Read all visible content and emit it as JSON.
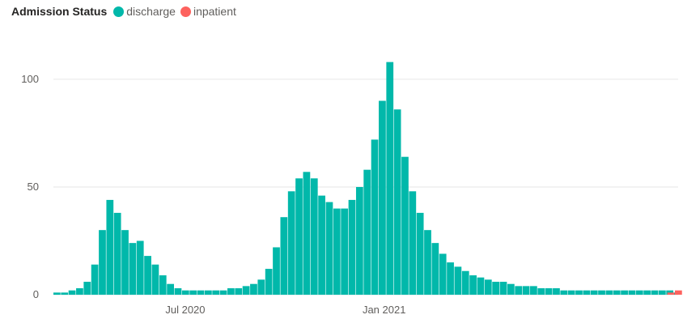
{
  "legend": {
    "title": "Admission Status",
    "items": [
      {
        "label": "discharge",
        "color": "#01b8aa"
      },
      {
        "label": "inpatient",
        "color": "#fd625e"
      }
    ]
  },
  "chart_data": {
    "type": "bar",
    "title": "",
    "xlabel": "",
    "ylabel": "",
    "x_range": [
      "2020-03-01",
      "2021-09-30"
    ],
    "ylim": [
      0,
      115
    ],
    "grid": true,
    "legend_position": "top-left",
    "yticks": [
      {
        "value": 0,
        "label": "0"
      },
      {
        "value": 50,
        "label": "50"
      },
      {
        "value": 100,
        "label": "100"
      }
    ],
    "xticks": [
      {
        "date": "2020-07-01",
        "label": "Jul 2020"
      },
      {
        "date": "2021-01-01",
        "label": "Jan 2021"
      }
    ],
    "series": [
      {
        "name": "discharge",
        "color": "#01b8aa",
        "points": [
          [
            "2020-03-01",
            1
          ],
          [
            "2020-03-08",
            1
          ],
          [
            "2020-03-15",
            2
          ],
          [
            "2020-03-22",
            3
          ],
          [
            "2020-03-29",
            6
          ],
          [
            "2020-04-05",
            14
          ],
          [
            "2020-04-12",
            30
          ],
          [
            "2020-04-19",
            44
          ],
          [
            "2020-04-26",
            38
          ],
          [
            "2020-05-03",
            30
          ],
          [
            "2020-05-10",
            24
          ],
          [
            "2020-05-17",
            25
          ],
          [
            "2020-05-24",
            18
          ],
          [
            "2020-05-31",
            14
          ],
          [
            "2020-06-07",
            9
          ],
          [
            "2020-06-14",
            5
          ],
          [
            "2020-06-21",
            3
          ],
          [
            "2020-06-28",
            2
          ],
          [
            "2020-07-05",
            2
          ],
          [
            "2020-07-12",
            2
          ],
          [
            "2020-07-19",
            2
          ],
          [
            "2020-07-26",
            2
          ],
          [
            "2020-08-02",
            2
          ],
          [
            "2020-08-09",
            3
          ],
          [
            "2020-08-16",
            3
          ],
          [
            "2020-08-23",
            4
          ],
          [
            "2020-08-30",
            5
          ],
          [
            "2020-09-06",
            7
          ],
          [
            "2020-09-13",
            12
          ],
          [
            "2020-09-20",
            22
          ],
          [
            "2020-09-27",
            36
          ],
          [
            "2020-10-04",
            48
          ],
          [
            "2020-10-11",
            54
          ],
          [
            "2020-10-18",
            57
          ],
          [
            "2020-10-25",
            54
          ],
          [
            "2020-11-01",
            46
          ],
          [
            "2020-11-08",
            43
          ],
          [
            "2020-11-15",
            40
          ],
          [
            "2020-11-22",
            40
          ],
          [
            "2020-11-29",
            44
          ],
          [
            "2020-12-06",
            50
          ],
          [
            "2020-12-13",
            58
          ],
          [
            "2020-12-20",
            72
          ],
          [
            "2020-12-27",
            90
          ],
          [
            "2021-01-03",
            108
          ],
          [
            "2021-01-10",
            86
          ],
          [
            "2021-01-17",
            64
          ],
          [
            "2021-01-24",
            48
          ],
          [
            "2021-01-31",
            38
          ],
          [
            "2021-02-07",
            30
          ],
          [
            "2021-02-14",
            24
          ],
          [
            "2021-02-21",
            19
          ],
          [
            "2021-02-28",
            15
          ],
          [
            "2021-03-07",
            13
          ],
          [
            "2021-03-14",
            11
          ],
          [
            "2021-03-21",
            9
          ],
          [
            "2021-03-28",
            8
          ],
          [
            "2021-04-04",
            7
          ],
          [
            "2021-04-11",
            6
          ],
          [
            "2021-04-18",
            6
          ],
          [
            "2021-04-25",
            5
          ],
          [
            "2021-05-02",
            4
          ],
          [
            "2021-05-09",
            4
          ],
          [
            "2021-05-16",
            4
          ],
          [
            "2021-05-23",
            3
          ],
          [
            "2021-05-30",
            3
          ],
          [
            "2021-06-06",
            3
          ],
          [
            "2021-06-13",
            2
          ],
          [
            "2021-06-20",
            2
          ],
          [
            "2021-06-27",
            2
          ],
          [
            "2021-07-04",
            2
          ],
          [
            "2021-07-11",
            2
          ],
          [
            "2021-07-18",
            2
          ],
          [
            "2021-07-25",
            2
          ],
          [
            "2021-08-01",
            2
          ],
          [
            "2021-08-08",
            2
          ],
          [
            "2021-08-15",
            2
          ],
          [
            "2021-08-22",
            2
          ],
          [
            "2021-08-29",
            2
          ],
          [
            "2021-09-05",
            2
          ],
          [
            "2021-09-12",
            2
          ],
          [
            "2021-09-19",
            2
          ],
          [
            "2021-09-26",
            1
          ]
        ]
      },
      {
        "name": "inpatient",
        "color": "#fd625e",
        "points": [
          [
            "2021-09-20",
            1
          ],
          [
            "2021-09-27",
            2
          ]
        ]
      }
    ]
  }
}
